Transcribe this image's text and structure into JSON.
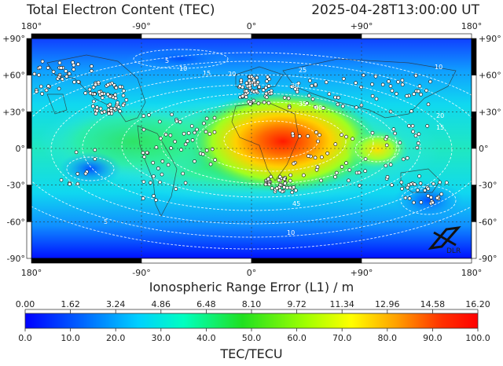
{
  "header": {
    "title": "Total Electron Content (TEC)",
    "timestamp": "2025-04-28T13:00:00 UT"
  },
  "map": {
    "x_ticks_top": [
      "180°",
      "-90°",
      "0°",
      "+90°",
      "180°"
    ],
    "x_ticks_bottom": [
      "180°",
      "-90°",
      "0°",
      "+90°",
      "180°"
    ],
    "y_ticks": [
      "+90°",
      "+60°",
      "+30°",
      "0°",
      "-30°",
      "-60°",
      "-90°"
    ],
    "contour_labels": [
      "5",
      "10",
      "15",
      "20",
      "25",
      "30",
      "35",
      "40",
      "45",
      "10",
      "15",
      "20",
      "5",
      "10"
    ],
    "logo_text": "DLR"
  },
  "range_axis": {
    "label": "Ionospheric Range Error (L1) / m",
    "ticks": [
      "0.00",
      "1.62",
      "3.24",
      "4.86",
      "6.48",
      "8.10",
      "9.72",
      "11.34",
      "12.96",
      "14.58",
      "16.20"
    ]
  },
  "colorbar": {
    "label": "TEC/TECU",
    "ticks": [
      "0.0",
      "10.0",
      "20.0",
      "30.0",
      "40.0",
      "50.0",
      "60.0",
      "70.0",
      "80.0",
      "90.0",
      "100.0"
    ],
    "colors": [
      "#0000ff",
      "#0080ff",
      "#00e0ff",
      "#00ffa0",
      "#20e020",
      "#a0ff00",
      "#ffff00",
      "#ffa000",
      "#ff3000",
      "#ff0000"
    ]
  },
  "chart_data": {
    "type": "heatmap",
    "title": "Total Electron Content (TEC)",
    "subtitle": "2025-04-28T13:00:00 UT",
    "xlabel": "Ionospheric Range Error (L1) / m",
    "colorbar_label": "TEC/TECU",
    "xlim": [
      -180,
      180
    ],
    "ylim": [
      -90,
      90
    ],
    "x_ticks": [
      -180,
      -90,
      0,
      90,
      180
    ],
    "y_ticks": [
      90,
      60,
      30,
      0,
      -30,
      -60,
      -90
    ],
    "value_range": [
      0,
      100
    ],
    "range_error_range": [
      0,
      16.2
    ],
    "grid": true,
    "peak": {
      "lon": 30,
      "lat": 10,
      "tec": 90
    },
    "secondary_peak": {
      "lon": 100,
      "lat": 0,
      "tec": 70
    },
    "contour_levels": [
      5,
      10,
      15,
      20,
      25,
      30,
      35,
      40,
      45
    ]
  }
}
